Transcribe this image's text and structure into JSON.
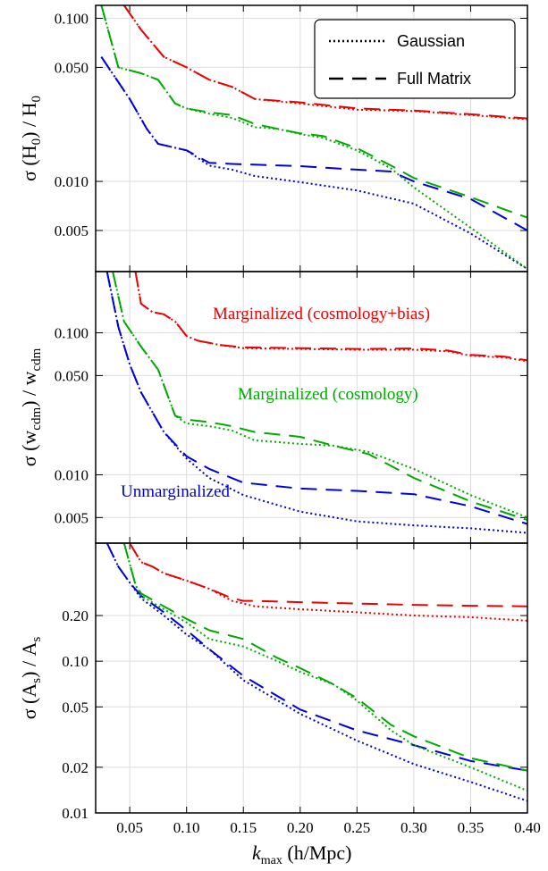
{
  "chart_data": {
    "type": "line",
    "x_range": [
      0.02,
      0.4
    ],
    "x_ticks": [
      0.05,
      0.1,
      0.15,
      0.2,
      0.25,
      0.3,
      0.35,
      0.4
    ],
    "x_tick_labels": [
      "0.05",
      "0.10",
      "0.15",
      "0.20",
      "0.25",
      "0.30",
      "0.35",
      "0.40"
    ],
    "x_label": {
      "main": "k",
      "sub": "max",
      "rest": " (h/Mpc)"
    },
    "colors": {
      "unmarginalized": "#0000dd",
      "cosmology": "#00aa00",
      "cosmology_bias": "#ee0000"
    },
    "legend": [
      {
        "label": "Gaussian",
        "style": "dotted"
      },
      {
        "label": "Full Matrix",
        "style": "dashed"
      }
    ],
    "annotations": [
      {
        "text": "Marginalized (cosmology+bias)",
        "color": "#ee0000"
      },
      {
        "text": "Marginalized (cosmology)",
        "color": "#00aa00"
      },
      {
        "text": "Unmarginalized",
        "color": "#0000dd"
      }
    ],
    "panels": [
      {
        "ylabel": {
          "a": "σ (H",
          "asub": "0",
          "b": ") / H",
          "bsub": "0"
        },
        "y_range": [
          0.0028,
          0.12
        ],
        "y_scale": "log",
        "y_ticks": [
          0.005,
          0.01,
          0.05,
          0.1
        ],
        "y_tick_labels": [
          "0.005",
          "0.010",
          "0.050",
          "0.100"
        ],
        "series": [
          {
            "group": "unmarginalized",
            "style": "gauss",
            "x": [
              0.025,
              0.05,
              0.065,
              0.075,
              0.1,
              0.12,
              0.14,
              0.16,
              0.2,
              0.25,
              0.3,
              0.35,
              0.4
            ],
            "y": [
              0.058,
              0.032,
              0.021,
              0.017,
              0.0155,
              0.0125,
              0.0118,
              0.0108,
              0.0099,
              0.0088,
              0.0073,
              0.0048,
              0.0029
            ]
          },
          {
            "group": "unmarginalized",
            "style": "full",
            "x": [
              0.025,
              0.05,
              0.065,
              0.075,
              0.1,
              0.12,
              0.14,
              0.2,
              0.25,
              0.28,
              0.3,
              0.35,
              0.4
            ],
            "y": [
              0.058,
              0.032,
              0.021,
              0.017,
              0.0155,
              0.013,
              0.0128,
              0.0124,
              0.0118,
              0.0115,
              0.01,
              0.0078,
              0.005
            ]
          },
          {
            "group": "cosmology",
            "style": "gauss",
            "x": [
              0.025,
              0.04,
              0.06,
              0.075,
              0.09,
              0.1,
              0.12,
              0.14,
              0.16,
              0.18,
              0.2,
              0.22,
              0.25,
              0.28,
              0.3,
              0.35,
              0.4
            ],
            "y": [
              0.12,
              0.05,
              0.046,
              0.042,
              0.03,
              0.028,
              0.026,
              0.0245,
              0.0215,
              0.021,
              0.0195,
              0.0185,
              0.0155,
              0.012,
              0.0092,
              0.0052,
              0.0029
            ]
          },
          {
            "group": "cosmology",
            "style": "full",
            "x": [
              0.025,
              0.04,
              0.06,
              0.075,
              0.09,
              0.1,
              0.12,
              0.14,
              0.16,
              0.18,
              0.2,
              0.22,
              0.25,
              0.28,
              0.3,
              0.35,
              0.4
            ],
            "y": [
              0.12,
              0.05,
              0.046,
              0.042,
              0.03,
              0.028,
              0.0265,
              0.0255,
              0.0225,
              0.021,
              0.0197,
              0.019,
              0.016,
              0.0125,
              0.0105,
              0.008,
              0.006
            ]
          },
          {
            "group": "cosmology_bias",
            "style": "gauss",
            "x": [
              0.045,
              0.06,
              0.08,
              0.1,
              0.12,
              0.14,
              0.16,
              0.2,
              0.25,
              0.3,
              0.35,
              0.4
            ],
            "y": [
              0.12,
              0.085,
              0.058,
              0.05,
              0.042,
              0.038,
              0.032,
              0.03,
              0.0275,
              0.027,
              0.0255,
              0.024
            ]
          },
          {
            "group": "cosmology_bias",
            "style": "full",
            "x": [
              0.045,
              0.06,
              0.08,
              0.1,
              0.12,
              0.14,
              0.16,
              0.2,
              0.25,
              0.3,
              0.35,
              0.4
            ],
            "y": [
              0.12,
              0.085,
              0.058,
              0.05,
              0.042,
              0.038,
              0.032,
              0.0305,
              0.028,
              0.0272,
              0.0258,
              0.0243
            ]
          }
        ]
      },
      {
        "ylabel": {
          "a": "σ (w",
          "asub": "cdm",
          "b": ") / w",
          "bsub": "cdm"
        },
        "y_range": [
          0.0033,
          0.27
        ],
        "y_scale": "log",
        "y_ticks": [
          0.005,
          0.01,
          0.05,
          0.1
        ],
        "y_tick_labels": [
          "0.005",
          "0.010",
          "0.050",
          "0.100"
        ],
        "series": [
          {
            "group": "unmarginalized",
            "style": "gauss",
            "x": [
              0.03,
              0.04,
              0.05,
              0.06,
              0.08,
              0.1,
              0.12,
              0.15,
              0.2,
              0.25,
              0.3,
              0.35,
              0.4
            ],
            "y": [
              0.27,
              0.11,
              0.06,
              0.038,
              0.02,
              0.013,
              0.0095,
              0.0072,
              0.0055,
              0.0047,
              0.0044,
              0.0042,
              0.0039
            ]
          },
          {
            "group": "unmarginalized",
            "style": "full",
            "x": [
              0.03,
              0.04,
              0.05,
              0.06,
              0.08,
              0.1,
              0.12,
              0.15,
              0.2,
              0.25,
              0.3,
              0.35,
              0.4
            ],
            "y": [
              0.27,
              0.11,
              0.06,
              0.038,
              0.02,
              0.0135,
              0.011,
              0.0088,
              0.008,
              0.0077,
              0.0073,
              0.006,
              0.0045
            ]
          },
          {
            "group": "cosmology",
            "style": "gauss",
            "x": [
              0.035,
              0.045,
              0.06,
              0.075,
              0.09,
              0.1,
              0.12,
              0.14,
              0.16,
              0.2,
              0.23,
              0.26,
              0.3,
              0.35,
              0.4
            ],
            "y": [
              0.27,
              0.12,
              0.08,
              0.055,
              0.026,
              0.023,
              0.022,
              0.0205,
              0.0175,
              0.0165,
              0.016,
              0.0145,
              0.011,
              0.0072,
              0.005
            ]
          },
          {
            "group": "cosmology",
            "style": "full",
            "x": [
              0.035,
              0.045,
              0.06,
              0.075,
              0.09,
              0.1,
              0.12,
              0.14,
              0.16,
              0.2,
              0.23,
              0.26,
              0.3,
              0.35,
              0.4
            ],
            "y": [
              0.27,
              0.12,
              0.08,
              0.055,
              0.026,
              0.0245,
              0.0235,
              0.022,
              0.02,
              0.0185,
              0.016,
              0.014,
              0.0095,
              0.0065,
              0.0048
            ]
          },
          {
            "group": "cosmology_bias",
            "style": "gauss",
            "x": [
              0.055,
              0.06,
              0.07,
              0.08,
              0.09,
              0.1,
              0.11,
              0.13,
              0.15,
              0.2,
              0.25,
              0.3,
              0.33,
              0.35,
              0.38,
              0.4
            ],
            "y": [
              0.27,
              0.16,
              0.14,
              0.135,
              0.12,
              0.095,
              0.088,
              0.082,
              0.078,
              0.077,
              0.076,
              0.076,
              0.074,
              0.069,
              0.067,
              0.063
            ]
          },
          {
            "group": "cosmology_bias",
            "style": "full",
            "x": [
              0.055,
              0.06,
              0.07,
              0.08,
              0.09,
              0.1,
              0.11,
              0.13,
              0.15,
              0.2,
              0.25,
              0.3,
              0.33,
              0.35,
              0.38,
              0.4
            ],
            "y": [
              0.27,
              0.16,
              0.14,
              0.135,
              0.12,
              0.095,
              0.088,
              0.082,
              0.079,
              0.078,
              0.077,
              0.0775,
              0.075,
              0.07,
              0.068,
              0.064
            ]
          }
        ]
      },
      {
        "ylabel": {
          "a": "σ (A",
          "asub": "s",
          "b": ") / A",
          "bsub": "s"
        },
        "y_range": [
          0.01,
          0.6
        ],
        "y_scale": "log",
        "y_ticks": [
          0.01,
          0.02,
          0.05,
          0.1,
          0.2
        ],
        "y_tick_labels": [
          "0.01",
          "0.02",
          "0.05",
          "0.10",
          "0.20"
        ],
        "series": [
          {
            "group": "unmarginalized",
            "style": "gauss",
            "x": [
              0.03,
              0.04,
              0.05,
              0.06,
              0.08,
              0.1,
              0.12,
              0.15,
              0.2,
              0.25,
              0.3,
              0.35,
              0.4
            ],
            "y": [
              0.6,
              0.42,
              0.33,
              0.26,
              0.2,
              0.15,
              0.12,
              0.075,
              0.045,
              0.03,
              0.021,
              0.016,
              0.012
            ]
          },
          {
            "group": "unmarginalized",
            "style": "full",
            "x": [
              0.03,
              0.04,
              0.05,
              0.06,
              0.08,
              0.1,
              0.12,
              0.15,
              0.2,
              0.25,
              0.3,
              0.35,
              0.4
            ],
            "y": [
              0.6,
              0.42,
              0.33,
              0.27,
              0.21,
              0.16,
              0.12,
              0.08,
              0.048,
              0.035,
              0.028,
              0.022,
              0.019
            ]
          },
          {
            "group": "cosmology",
            "style": "gauss",
            "x": [
              0.045,
              0.055,
              0.06,
              0.08,
              0.1,
              0.12,
              0.15,
              0.18,
              0.2,
              0.23,
              0.25,
              0.28,
              0.3,
              0.35,
              0.4
            ],
            "y": [
              0.6,
              0.32,
              0.27,
              0.22,
              0.18,
              0.14,
              0.125,
              0.1,
              0.085,
              0.07,
              0.055,
              0.035,
              0.028,
              0.02,
              0.014
            ]
          },
          {
            "group": "cosmology",
            "style": "full",
            "x": [
              0.045,
              0.055,
              0.06,
              0.08,
              0.1,
              0.12,
              0.15,
              0.18,
              0.2,
              0.23,
              0.25,
              0.28,
              0.3,
              0.35,
              0.4
            ],
            "y": [
              0.6,
              0.32,
              0.28,
              0.23,
              0.19,
              0.16,
              0.14,
              0.105,
              0.09,
              0.07,
              0.057,
              0.038,
              0.032,
              0.023,
              0.019
            ]
          },
          {
            "group": "cosmology_bias",
            "style": "gauss",
            "x": [
              0.05,
              0.06,
              0.07,
              0.08,
              0.1,
              0.12,
              0.14,
              0.15,
              0.16,
              0.2,
              0.25,
              0.3,
              0.35,
              0.4
            ],
            "y": [
              0.6,
              0.45,
              0.42,
              0.38,
              0.34,
              0.3,
              0.25,
              0.24,
              0.23,
              0.22,
              0.21,
              0.2,
              0.195,
              0.185
            ]
          },
          {
            "group": "cosmology_bias",
            "style": "full",
            "x": [
              0.05,
              0.06,
              0.07,
              0.08,
              0.1,
              0.12,
              0.14,
              0.15,
              0.16,
              0.2,
              0.25,
              0.3,
              0.35,
              0.4
            ],
            "y": [
              0.6,
              0.45,
              0.42,
              0.38,
              0.34,
              0.3,
              0.26,
              0.25,
              0.25,
              0.245,
              0.24,
              0.235,
              0.232,
              0.23
            ]
          }
        ]
      }
    ]
  }
}
